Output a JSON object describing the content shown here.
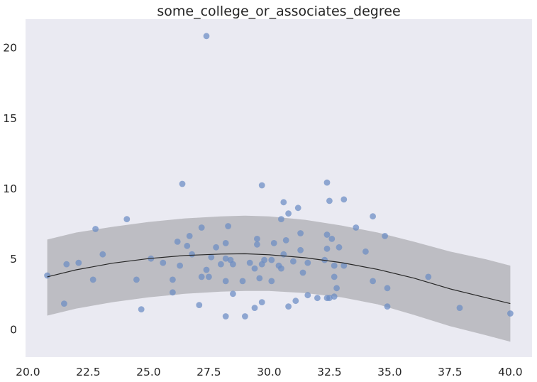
{
  "chart_data": {
    "type": "scatter",
    "title": "some_college_or_associates_degree",
    "xlabel": "",
    "ylabel": "",
    "xlim": [
      19.9,
      40.9
    ],
    "ylim": [
      -2.0,
      22.0
    ],
    "xticks": [
      "20.0",
      "22.5",
      "25.0",
      "27.5",
      "30.0",
      "32.5",
      "35.0",
      "37.5",
      "40.0"
    ],
    "yticks": [
      "0",
      "5",
      "10",
      "15",
      "20"
    ],
    "grid": false,
    "legend": "none",
    "colors": {
      "background": "#eaeaf2",
      "points": "#6b8cc4",
      "fit_line": "#262626",
      "band": "#bbbac0"
    },
    "points": [
      [
        20.8,
        3.8
      ],
      [
        21.5,
        1.8
      ],
      [
        21.6,
        4.6
      ],
      [
        22.1,
        4.7
      ],
      [
        22.7,
        3.5
      ],
      [
        22.8,
        7.1
      ],
      [
        23.1,
        5.3
      ],
      [
        24.1,
        7.8
      ],
      [
        24.5,
        3.5
      ],
      [
        24.7,
        1.4
      ],
      [
        25.1,
        5.0
      ],
      [
        25.6,
        4.7
      ],
      [
        26.0,
        2.6
      ],
      [
        26.0,
        3.5
      ],
      [
        26.2,
        6.2
      ],
      [
        26.3,
        4.5
      ],
      [
        26.4,
        10.3
      ],
      [
        26.6,
        5.9
      ],
      [
        26.7,
        6.6
      ],
      [
        26.8,
        5.3
      ],
      [
        27.1,
        1.7
      ],
      [
        27.2,
        3.7
      ],
      [
        27.2,
        7.2
      ],
      [
        27.4,
        4.2
      ],
      [
        27.5,
        3.7
      ],
      [
        27.4,
        20.8
      ],
      [
        27.6,
        5.1
      ],
      [
        27.8,
        5.8
      ],
      [
        28.0,
        4.6
      ],
      [
        28.2,
        3.4
      ],
      [
        28.2,
        6.1
      ],
      [
        28.2,
        0.9
      ],
      [
        28.2,
        5.0
      ],
      [
        28.3,
        7.3
      ],
      [
        28.4,
        4.9
      ],
      [
        28.5,
        4.6
      ],
      [
        28.5,
        2.5
      ],
      [
        28.9,
        3.4
      ],
      [
        29.0,
        0.9
      ],
      [
        29.2,
        4.7
      ],
      [
        29.4,
        1.5
      ],
      [
        29.4,
        4.3
      ],
      [
        29.5,
        6.4
      ],
      [
        29.5,
        6.0
      ],
      [
        29.6,
        3.6
      ],
      [
        29.7,
        1.9
      ],
      [
        29.7,
        4.6
      ],
      [
        29.8,
        4.9
      ],
      [
        29.7,
        10.2
      ],
      [
        30.1,
        4.9
      ],
      [
        30.1,
        3.4
      ],
      [
        30.2,
        6.1
      ],
      [
        30.4,
        4.5
      ],
      [
        30.5,
        4.3
      ],
      [
        30.5,
        7.8
      ],
      [
        30.6,
        9.0
      ],
      [
        30.6,
        5.3
      ],
      [
        30.7,
        6.3
      ],
      [
        30.8,
        8.2
      ],
      [
        30.8,
        1.6
      ],
      [
        31.0,
        4.8
      ],
      [
        31.1,
        2.0
      ],
      [
        31.2,
        8.6
      ],
      [
        31.3,
        6.8
      ],
      [
        31.3,
        5.6
      ],
      [
        31.4,
        4.0
      ],
      [
        31.6,
        2.4
      ],
      [
        31.6,
        4.7
      ],
      [
        32.0,
        2.2
      ],
      [
        32.3,
        4.9
      ],
      [
        32.4,
        2.2
      ],
      [
        32.4,
        5.7
      ],
      [
        32.4,
        6.7
      ],
      [
        32.4,
        10.4
      ],
      [
        32.5,
        9.1
      ],
      [
        32.5,
        2.2
      ],
      [
        32.6,
        6.4
      ],
      [
        32.7,
        2.3
      ],
      [
        32.7,
        3.7
      ],
      [
        32.7,
        4.5
      ],
      [
        32.8,
        2.9
      ],
      [
        32.9,
        5.8
      ],
      [
        33.1,
        9.2
      ],
      [
        33.1,
        4.5
      ],
      [
        33.6,
        7.2
      ],
      [
        34.0,
        5.5
      ],
      [
        34.3,
        8.0
      ],
      [
        34.3,
        3.4
      ],
      [
        34.8,
        6.6
      ],
      [
        34.9,
        2.9
      ],
      [
        34.9,
        1.6
      ],
      [
        36.6,
        3.7
      ],
      [
        37.9,
        1.5
      ],
      [
        40.0,
        1.1
      ]
    ],
    "fit": {
      "x": [
        20.8,
        22.0,
        23.5,
        25.0,
        26.5,
        28.0,
        29.0,
        30.0,
        31.5,
        33.0,
        34.5,
        36.0,
        37.5,
        39.0,
        40.0
      ],
      "y": [
        3.7,
        4.2,
        4.67,
        5.0,
        5.22,
        5.32,
        5.34,
        5.27,
        5.06,
        4.71,
        4.23,
        3.61,
        2.85,
        2.22,
        1.8
      ],
      "lower": [
        0.95,
        1.45,
        1.9,
        2.25,
        2.5,
        2.65,
        2.7,
        2.7,
        2.55,
        2.25,
        1.75,
        1.0,
        0.2,
        -0.45,
        -0.9
      ],
      "upper": [
        6.35,
        6.85,
        7.25,
        7.6,
        7.85,
        8.0,
        8.05,
        8.0,
        7.75,
        7.35,
        6.85,
        6.2,
        5.5,
        4.95,
        4.5
      ]
    }
  }
}
